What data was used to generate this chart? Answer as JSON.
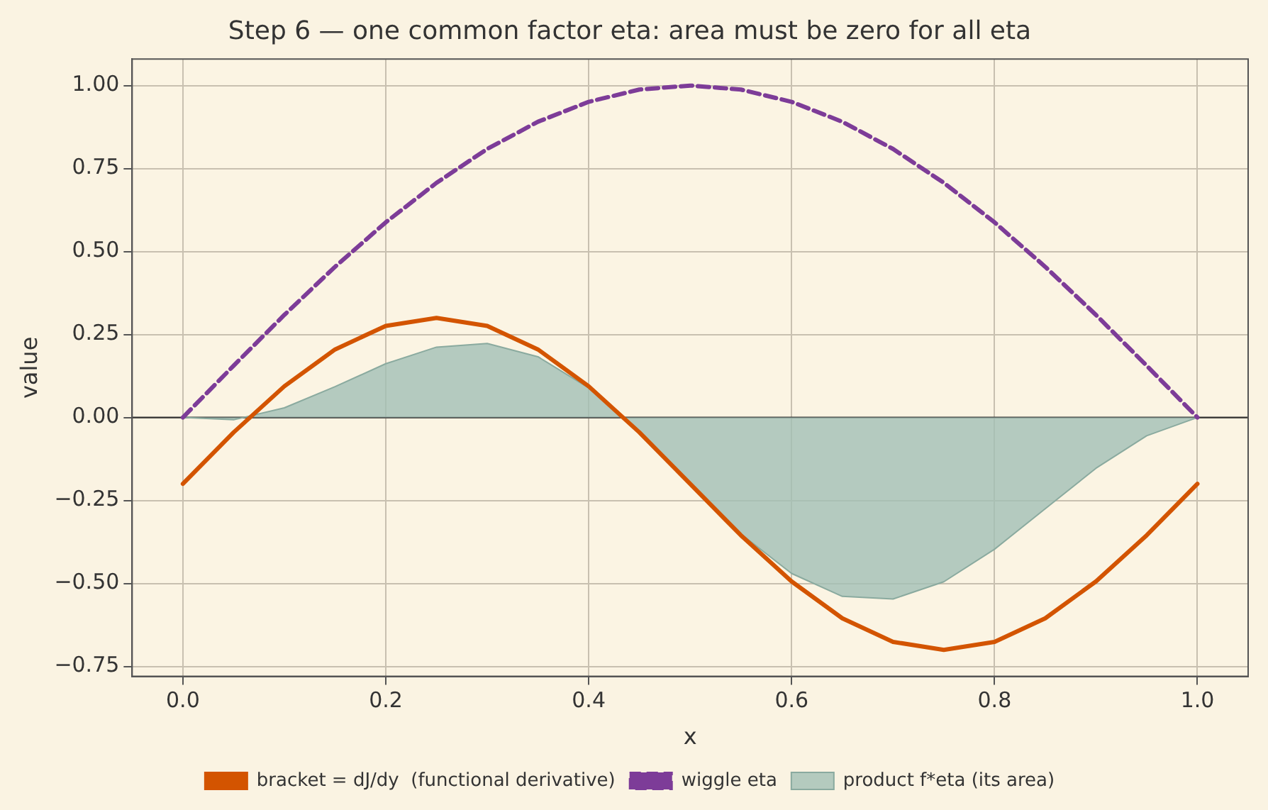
{
  "chart_data": {
    "type": "line",
    "title": "Step 6 — one common factor eta: area must be zero for all eta",
    "xlabel": "x",
    "ylabel": "value",
    "x": [
      0,
      0.05,
      0.1,
      0.15,
      0.2,
      0.25,
      0.3,
      0.35,
      0.4,
      0.45,
      0.5,
      0.55,
      0.6,
      0.65,
      0.7,
      0.75,
      0.8,
      0.85,
      0.9,
      0.95,
      1
    ],
    "series": [
      {
        "name": "bracket = dJ/dy  (functional derivative)",
        "color": "#d35400",
        "values": [
          -0.2,
          -0.045,
          0.094,
          0.205,
          0.276,
          0.3,
          0.276,
          0.205,
          0.094,
          -0.045,
          -0.2,
          -0.355,
          -0.494,
          -0.605,
          -0.676,
          -0.7,
          -0.676,
          -0.605,
          -0.494,
          -0.355,
          -0.2
        ]
      },
      {
        "name": "wiggle eta",
        "color": "#7d3c98",
        "line_style": "dashed",
        "values": [
          0,
          0.156,
          0.309,
          0.454,
          0.588,
          0.707,
          0.809,
          0.891,
          0.951,
          0.988,
          1,
          0.988,
          0.951,
          0.891,
          0.809,
          0.707,
          0.588,
          0.454,
          0.309,
          0.156,
          0
        ]
      },
      {
        "name": "product f*eta (its area)",
        "type": "area",
        "color": "#a3bfb5",
        "values": [
          0,
          -0.007,
          0.029,
          0.093,
          0.162,
          0.212,
          0.223,
          0.183,
          0.089,
          -0.044,
          -0.2,
          -0.351,
          -0.47,
          -0.539,
          -0.547,
          -0.495,
          -0.397,
          -0.275,
          -0.153,
          -0.055,
          0
        ]
      }
    ],
    "xlim": [
      -0.05,
      1.05
    ],
    "xticks": [
      {
        "value": 0,
        "label": "0.0"
      },
      {
        "value": 0.2,
        "label": "0.2"
      },
      {
        "value": 0.4,
        "label": "0.4"
      },
      {
        "value": 0.6,
        "label": "0.6"
      },
      {
        "value": 0.8,
        "label": "0.8"
      },
      {
        "value": 1,
        "label": "1.0"
      }
    ],
    "ylim": [
      -0.78,
      1.08
    ],
    "yticks": [
      {
        "value": -0.75,
        "label": "−0.75"
      },
      {
        "value": -0.5,
        "label": "−0.50"
      },
      {
        "value": -0.25,
        "label": "−0.25"
      },
      {
        "value": 0,
        "label": "0.00"
      },
      {
        "value": 0.25,
        "label": "0.25"
      },
      {
        "value": 0.5,
        "label": "0.50"
      },
      {
        "value": 0.75,
        "label": "0.75"
      },
      {
        "value": 1,
        "label": "1.00"
      }
    ],
    "ref_lines": [
      {
        "axis": "y",
        "value": 0,
        "color": "#333333"
      }
    ],
    "grid": true,
    "legend": "bottom",
    "marker": "none"
  }
}
